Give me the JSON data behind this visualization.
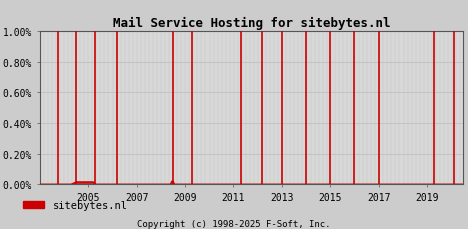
{
  "title": "Mail Service Hosting for sitebytes.nl",
  "copyright": "Copyright (c) 1998-2025 F-Soft, Inc.",
  "legend_label": "sitebytes.nl",
  "legend_color": "#cc0000",
  "xlim": [
    2003.0,
    2020.5
  ],
  "ylim": [
    0.0,
    1.0
  ],
  "yticks": [
    0.0,
    0.2,
    0.4,
    0.6,
    0.8,
    1.0
  ],
  "ytick_labels": [
    "0.00%",
    "0.20%",
    "0.40%",
    "0.60%",
    "0.80%",
    "1.00%"
  ],
  "xticks": [
    2005,
    2007,
    2009,
    2011,
    2013,
    2015,
    2017,
    2019
  ],
  "background_color": "#cccccc",
  "plot_bg_color": "#d8d8d8",
  "fine_grid_color": "#bbbbbb",
  "coarse_grid_color": "#bbbbbb",
  "white_grid_color": "#ffffff",
  "line_color": "#cc0000",
  "title_fontsize": 9,
  "tick_fontsize": 7,
  "legend_fontsize": 7.5,
  "copyright_fontsize": 6.5,
  "spike_years": [
    2003.75,
    2004.5,
    2005.3,
    2006.2,
    2008.5,
    2009.3,
    2011.3,
    2012.2,
    2013.0,
    2014.0,
    2015.0,
    2016.0,
    2017.0,
    2019.3,
    2020.1
  ],
  "baseline_x": [
    2003.0,
    2004.3,
    2004.5,
    2005.2,
    2005.3,
    2006.1,
    2006.2,
    2008.4,
    2008.45,
    2008.5,
    2008.55,
    2009.25,
    2009.3,
    2011.2,
    2020.5
  ],
  "baseline_y": [
    0.0,
    0.0,
    0.015,
    0.015,
    0.0,
    0.0,
    0.0,
    0.0,
    0.02,
    0.02,
    0.0,
    0.0,
    0.0,
    0.0,
    0.0
  ]
}
